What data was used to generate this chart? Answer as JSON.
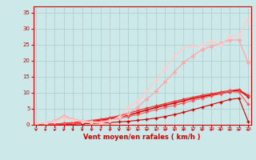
{
  "x": [
    0,
    1,
    2,
    3,
    4,
    5,
    6,
    7,
    8,
    9,
    10,
    11,
    12,
    13,
    14,
    15,
    16,
    17,
    18,
    19,
    20,
    21,
    22,
    23
  ],
  "lines": [
    {
      "y": [
        0.0,
        0.05,
        0.1,
        0.15,
        0.2,
        0.3,
        0.4,
        0.5,
        0.7,
        0.9,
        1.1,
        1.4,
        1.7,
        2.1,
        2.6,
        3.2,
        3.9,
        4.7,
        5.5,
        6.3,
        7.1,
        7.9,
        8.3,
        1.1
      ],
      "color": "#cc0000",
      "lw": 0.8,
      "marker": "+",
      "ms": 3
    },
    {
      "y": [
        0.0,
        0.1,
        0.2,
        0.35,
        0.55,
        0.8,
        1.1,
        1.45,
        1.85,
        2.4,
        3.0,
        3.8,
        4.6,
        5.4,
        6.1,
        6.8,
        7.5,
        8.2,
        8.8,
        9.3,
        9.8,
        10.3,
        10.8,
        8.8
      ],
      "color": "#cc0000",
      "lw": 1.1,
      "marker": "+",
      "ms": 3
    },
    {
      "y": [
        0.0,
        0.1,
        0.25,
        0.45,
        0.7,
        1.0,
        1.35,
        1.75,
        2.2,
        2.85,
        3.6,
        4.4,
        5.2,
        5.9,
        6.6,
        7.3,
        8.0,
        8.6,
        9.2,
        9.7,
        10.2,
        10.7,
        11.0,
        9.2
      ],
      "color": "#ee3333",
      "lw": 0.9,
      "marker": "+",
      "ms": 3
    },
    {
      "y": [
        0.0,
        0.08,
        0.18,
        0.3,
        0.45,
        0.65,
        0.9,
        1.2,
        1.55,
        2.0,
        2.55,
        3.2,
        3.95,
        4.7,
        5.4,
        6.1,
        6.8,
        7.6,
        8.3,
        9.0,
        9.7,
        10.4,
        10.2,
        6.4
      ],
      "color": "#ff5555",
      "lw": 0.8,
      "marker": "+",
      "ms": 3
    },
    {
      "y": [
        0.3,
        0.6,
        1.2,
        2.8,
        1.8,
        1.2,
        1.0,
        0.8,
        1.4,
        2.2,
        3.5,
        5.5,
        8.0,
        10.5,
        13.5,
        16.5,
        19.5,
        21.5,
        23.5,
        24.5,
        25.5,
        26.5,
        26.5,
        19.5
      ],
      "color": "#ffaaaa",
      "lw": 1.0,
      "marker": "D",
      "ms": 2
    },
    {
      "y": [
        0.3,
        0.5,
        0.9,
        2.2,
        1.5,
        1.0,
        0.7,
        0.5,
        1.2,
        2.5,
        5.5,
        7.5,
        10.5,
        14.0,
        17.5,
        21.5,
        24.0,
        24.5,
        25.0,
        26.0,
        25.0,
        27.5,
        28.0,
        33.0
      ],
      "color": "#ffcccc",
      "lw": 1.0,
      "marker": "D",
      "ms": 2
    }
  ],
  "xlabel": "Vent moyen/en rafales ( km/h )",
  "xlabel_color": "#cc0000",
  "xlim": [
    -0.3,
    23.3
  ],
  "ylim": [
    0,
    37
  ],
  "yticks": [
    0,
    5,
    10,
    15,
    20,
    25,
    30,
    35
  ],
  "xticks": [
    0,
    1,
    2,
    3,
    4,
    5,
    6,
    7,
    8,
    9,
    10,
    11,
    12,
    13,
    14,
    15,
    16,
    17,
    18,
    19,
    20,
    21,
    22,
    23
  ],
  "bg_color": "#cce8e8",
  "grid_color": "#aacccc",
  "tick_color": "#cc0000",
  "spine_color": "#cc0000"
}
